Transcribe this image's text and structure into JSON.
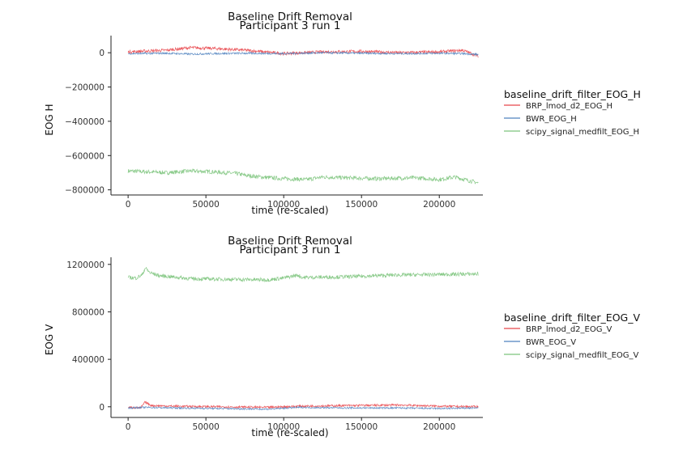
{
  "chart_data": [
    {
      "type": "line",
      "title": "Baseline Drift Removal",
      "subtitle": "Participant 3 run 1",
      "xlabel": "time (re-scaled)",
      "ylabel": "EOG H",
      "xlim": [
        -11000,
        228000
      ],
      "ylim": [
        -830000,
        100000
      ],
      "xticks": [
        0,
        50000,
        100000,
        150000,
        200000
      ],
      "xtick_labels": [
        "0",
        "50000",
        "100000",
        "150000",
        "200000"
      ],
      "yticks": [
        0,
        -200000,
        -400000,
        -600000,
        -800000
      ],
      "ytick_labels": [
        "0",
        "−200000",
        "−400000",
        "−600000",
        "−800000"
      ],
      "grid": false,
      "legend": {
        "title": "baseline_drift_filter_EOG_H",
        "placement": "right",
        "entries": [
          "BRP_lmod_d2_EOG_H",
          "BWR_EOG_H",
          "scipy_signal_medfilt_EOG_H"
        ]
      },
      "series": [
        {
          "name": "BRP_lmod_d2_EOG_H",
          "color": "#e8464b",
          "x": [
            0,
            25000,
            40000,
            55000,
            75000,
            100000,
            125000,
            150000,
            175000,
            200000,
            215000,
            225000
          ],
          "values": [
            5000,
            15000,
            30000,
            25000,
            15000,
            -5000,
            5000,
            8000,
            0,
            5000,
            15000,
            -20000
          ]
        },
        {
          "name": "BWR_EOG_H",
          "color": "#4f82bf",
          "x": [
            0,
            25000,
            40000,
            55000,
            75000,
            100000,
            125000,
            150000,
            175000,
            200000,
            215000,
            225000
          ],
          "values": [
            -5000,
            -3000,
            -8000,
            -5000,
            -3000,
            -5000,
            0,
            -3000,
            -5000,
            -3000,
            -5000,
            -10000
          ]
        },
        {
          "name": "scipy_signal_medfilt_EOG_H",
          "color": "#7cc47c",
          "x": [
            0,
            25000,
            40000,
            55000,
            70000,
            75000,
            85000,
            100000,
            115000,
            125000,
            140000,
            160000,
            185000,
            200000,
            210000,
            225000
          ],
          "values": [
            -690000,
            -700000,
            -690000,
            -695000,
            -705000,
            -715000,
            -725000,
            -735000,
            -740000,
            -725000,
            -730000,
            -735000,
            -730000,
            -740000,
            -725000,
            -760000
          ]
        }
      ]
    },
    {
      "type": "line",
      "title": "Baseline Drift Removal",
      "subtitle": "Participant 3 run 1",
      "xlabel": "time (re-scaled)",
      "ylabel": "EOG V",
      "xlim": [
        -11000,
        228000
      ],
      "ylim": [
        -90000,
        1260000
      ],
      "xticks": [
        0,
        50000,
        100000,
        150000,
        200000
      ],
      "xtick_labels": [
        "0",
        "50000",
        "100000",
        "150000",
        "200000"
      ],
      "yticks": [
        0,
        400000,
        800000,
        1200000
      ],
      "ytick_labels": [
        "0",
        "400000",
        "800000",
        "1200000"
      ],
      "grid": false,
      "legend": {
        "title": "baseline_drift_filter_EOG_V",
        "placement": "right",
        "entries": [
          "BRP_lmod_d2_EOG_V",
          "BWR_EOG_V",
          "scipy_signal_medfilt_EOG_V"
        ]
      },
      "series": [
        {
          "name": "BRP_lmod_d2_EOG_V",
          "color": "#e8464b",
          "x": [
            0,
            8000,
            11000,
            15000,
            30000,
            60000,
            90000,
            110000,
            140000,
            175000,
            200000,
            225000
          ],
          "values": [
            -5000,
            -10000,
            40000,
            10000,
            5000,
            0,
            -5000,
            5000,
            10000,
            15000,
            5000,
            0
          ]
        },
        {
          "name": "BWR_EOG_V",
          "color": "#4f82bf",
          "x": [
            0,
            11000,
            30000,
            60000,
            90000,
            110000,
            140000,
            175000,
            200000,
            225000
          ],
          "values": [
            -10000,
            -5000,
            -10000,
            -15000,
            -20000,
            -5000,
            -10000,
            -10000,
            -15000,
            -10000
          ]
        },
        {
          "name": "scipy_signal_medfilt_EOG_V",
          "color": "#7cc47c",
          "x": [
            0,
            5000,
            9000,
            11000,
            14000,
            20000,
            40000,
            60000,
            90000,
            100000,
            109000,
            112000,
            140000,
            170000,
            200000,
            225000
          ],
          "values": [
            1090000,
            1085000,
            1110000,
            1170000,
            1130000,
            1105000,
            1080000,
            1075000,
            1070000,
            1085000,
            1110000,
            1090000,
            1095000,
            1110000,
            1115000,
            1120000
          ]
        }
      ]
    }
  ]
}
